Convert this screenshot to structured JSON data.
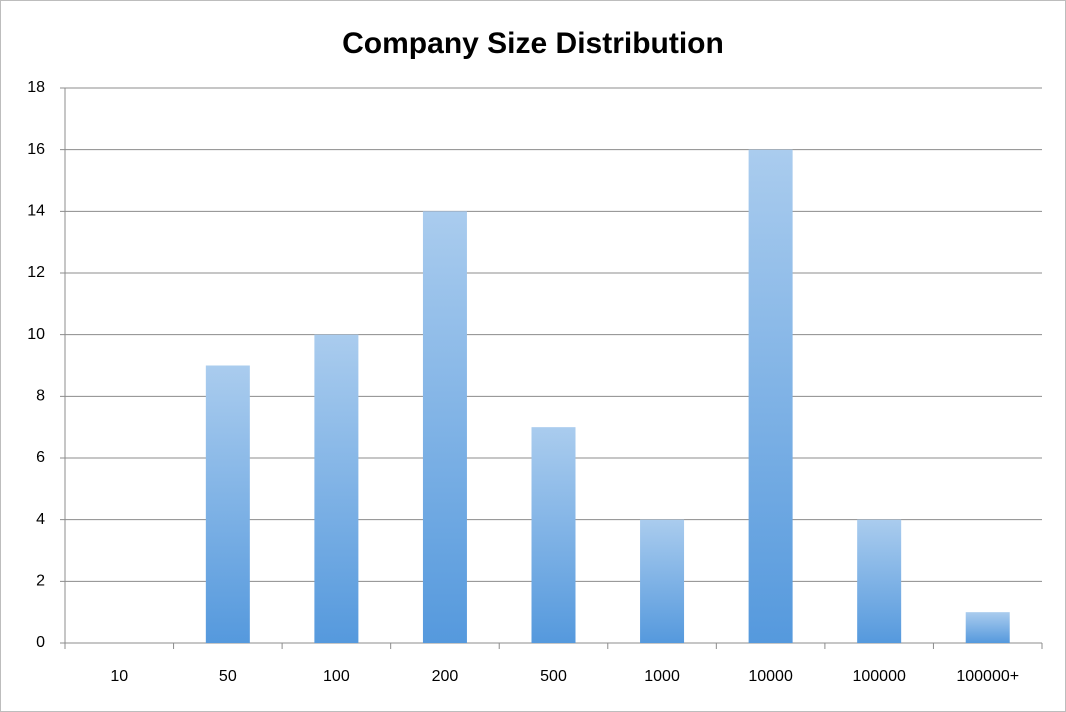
{
  "chart_data": {
    "type": "bar",
    "title": "Company Size Distribution",
    "categories": [
      "10",
      "50",
      "100",
      "200",
      "500",
      "1000",
      "10000",
      "100000",
      "100000+"
    ],
    "values": [
      0,
      9,
      10,
      14,
      7,
      4,
      16,
      4,
      1
    ],
    "color": "#5599dd",
    "ylim": [
      0,
      18
    ],
    "yticks": [
      0,
      2,
      4,
      6,
      8,
      10,
      12,
      14,
      16,
      18
    ],
    "grid": true
  }
}
